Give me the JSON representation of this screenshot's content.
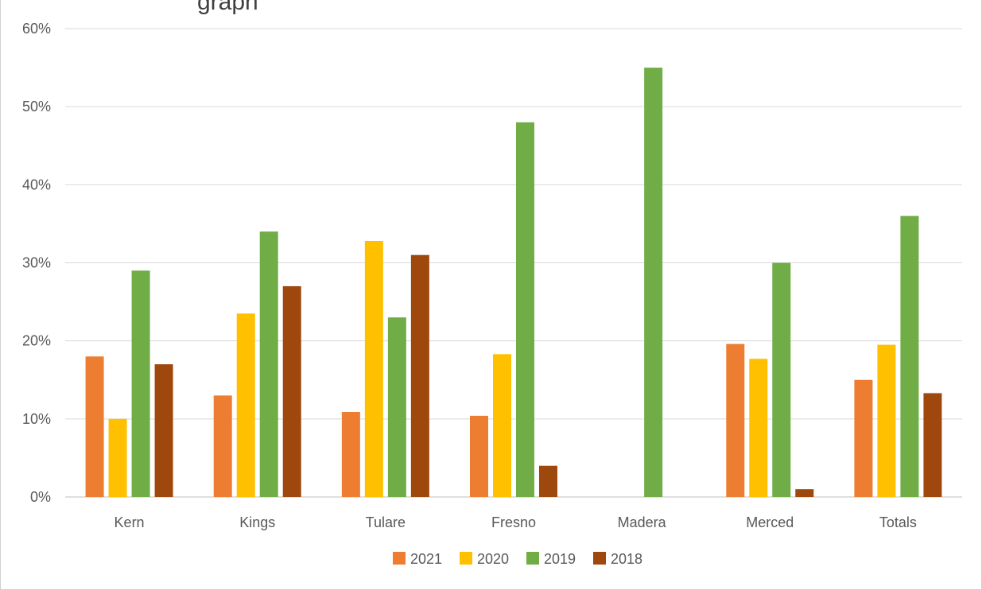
{
  "chart_data": {
    "type": "bar",
    "title": "",
    "xlabel": "",
    "ylabel": "",
    "ylim": [
      0,
      60
    ],
    "y_unit": "%",
    "grid": true,
    "legend_position": "bottom",
    "categories": [
      "Kern",
      "Kings",
      "Tulare",
      "Fresno",
      "Madera",
      "Merced",
      "Totals"
    ],
    "y_ticks": [
      "0%",
      "10%",
      "20%",
      "30%",
      "40%",
      "50%",
      "60%"
    ],
    "series": [
      {
        "name": "2021",
        "color": "#ED7D31",
        "values": [
          18,
          13,
          10.9,
          10.4,
          0,
          19.6,
          15
        ]
      },
      {
        "name": "2020",
        "color": "#FFC000",
        "values": [
          10,
          23.5,
          32.8,
          18.3,
          0,
          17.7,
          19.5
        ]
      },
      {
        "name": "2019",
        "color": "#70AD47",
        "values": [
          29,
          34,
          23,
          48,
          55,
          30,
          36
        ]
      },
      {
        "name": "2018",
        "color": "#9E480E",
        "values": [
          17,
          27,
          31,
          4,
          0,
          1,
          13.3
        ]
      }
    ]
  }
}
